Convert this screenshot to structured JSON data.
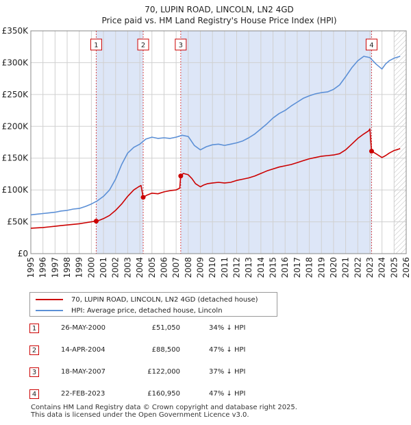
{
  "chart_data": {
    "type": "line",
    "title": "70, LUPIN ROAD, LINCOLN, LN2 4GD",
    "subtitle": "Price paid vs. HM Land Registry's House Price Index (HPI)",
    "y_tick_labels": [
      "£0",
      "£50K",
      "£100K",
      "£150K",
      "£200K",
      "£250K",
      "£300K",
      "£350K"
    ],
    "x_tick_labels": [
      "1995",
      "1996",
      "1997",
      "1998",
      "1999",
      "2000",
      "2001",
      "2002",
      "2003",
      "2004",
      "2005",
      "2006",
      "2007",
      "2008",
      "2009",
      "2010",
      "2011",
      "2012",
      "2013",
      "2014",
      "2015",
      "2016",
      "2017",
      "2018",
      "2019",
      "2020",
      "2021",
      "2022",
      "2023",
      "2024",
      "2025",
      "2026"
    ],
    "xlim": [
      1995,
      2026
    ],
    "ylim": [
      0,
      350000
    ],
    "y_ticks": [
      0,
      50000,
      100000,
      150000,
      200000,
      250000,
      300000,
      350000
    ],
    "hatch_from": 2025.0,
    "colors": {
      "property": "#cc0000",
      "hpi": "#5b8fd6",
      "shade": "#dde6f7",
      "grid": "#d0d0d0"
    },
    "series": [
      {
        "name": "70, LUPIN ROAD, LINCOLN, LN2 4GD (detached house)",
        "color": "#cc0000",
        "x": [
          1995.0,
          1995.5,
          1996.0,
          1996.5,
          1997.0,
          1997.5,
          1998.0,
          1998.5,
          1999.0,
          1999.5,
          2000.0,
          2000.38,
          2000.6,
          2001.0,
          2001.5,
          2002.0,
          2002.5,
          2003.0,
          2003.5,
          2003.9,
          2004.1,
          2004.28,
          2004.6,
          2005.0,
          2005.5,
          2006.0,
          2006.5,
          2007.0,
          2007.3,
          2007.38,
          2007.6,
          2008.0,
          2008.3,
          2008.6,
          2009.0,
          2009.3,
          2009.6,
          2010.0,
          2010.5,
          2011.0,
          2011.5,
          2012.0,
          2012.5,
          2013.0,
          2013.5,
          2014.0,
          2014.5,
          2015.0,
          2015.5,
          2016.0,
          2016.5,
          2017.0,
          2017.5,
          2018.0,
          2018.5,
          2019.0,
          2019.5,
          2020.0,
          2020.5,
          2021.0,
          2021.5,
          2022.0,
          2022.5,
          2022.9,
          2023.0,
          2023.14,
          2023.5,
          2024.0,
          2024.3,
          2024.6,
          2025.0,
          2025.5
        ],
        "values": [
          40000,
          40500,
          41000,
          42000,
          43000,
          44000,
          45000,
          46000,
          47000,
          48500,
          50000,
          51050,
          52000,
          55000,
          60000,
          68000,
          78000,
          90000,
          100000,
          105000,
          107000,
          88500,
          92000,
          95000,
          94000,
          97000,
          99000,
          100000,
          103000,
          122000,
          126000,
          124000,
          118000,
          110000,
          105000,
          108000,
          110000,
          111000,
          112000,
          111000,
          112000,
          115000,
          117000,
          119000,
          122000,
          126000,
          130000,
          133000,
          136000,
          138000,
          140000,
          143000,
          146000,
          149000,
          151000,
          153000,
          154000,
          155000,
          157000,
          163000,
          172000,
          181000,
          188000,
          193000,
          196000,
          160950,
          157000,
          151000,
          154000,
          158000,
          162000,
          165000
        ]
      },
      {
        "name": "HPI: Average price, detached house, Lincoln",
        "color": "#5b8fd6",
        "x": [
          1995.0,
          1995.5,
          1996.0,
          1996.5,
          1997.0,
          1997.5,
          1998.0,
          1998.5,
          1999.0,
          1999.5,
          2000.0,
          2000.5,
          2001.0,
          2001.5,
          2002.0,
          2002.5,
          2003.0,
          2003.5,
          2004.0,
          2004.5,
          2005.0,
          2005.5,
          2006.0,
          2006.5,
          2007.0,
          2007.5,
          2008.0,
          2008.5,
          2009.0,
          2009.5,
          2010.0,
          2010.5,
          2011.0,
          2011.5,
          2012.0,
          2012.5,
          2013.0,
          2013.5,
          2014.0,
          2014.5,
          2015.0,
          2015.5,
          2016.0,
          2016.5,
          2017.0,
          2017.5,
          2018.0,
          2018.5,
          2019.0,
          2019.5,
          2020.0,
          2020.5,
          2021.0,
          2021.5,
          2022.0,
          2022.5,
          2023.0,
          2023.5,
          2024.0,
          2024.3,
          2024.6,
          2025.0,
          2025.5
        ],
        "values": [
          61000,
          62000,
          63000,
          64000,
          65000,
          67000,
          68000,
          70000,
          71000,
          74000,
          78000,
          83000,
          90000,
          100000,
          117000,
          140000,
          158000,
          167000,
          172000,
          180000,
          183000,
          181000,
          182000,
          181000,
          183000,
          186000,
          184000,
          170000,
          163000,
          168000,
          171000,
          172000,
          170000,
          172000,
          174000,
          177000,
          182000,
          188000,
          196000,
          204000,
          213000,
          220000,
          225000,
          232000,
          238000,
          244000,
          248000,
          251000,
          253000,
          254000,
          258000,
          265000,
          278000,
          292000,
          303000,
          310000,
          308000,
          298000,
          290000,
          298000,
          303000,
          307000,
          310000
        ]
      }
    ],
    "sales": [
      {
        "n": "1",
        "x": 2000.4,
        "value": 51050
      },
      {
        "n": "2",
        "x": 2004.28,
        "value": 88500
      },
      {
        "n": "3",
        "x": 2007.38,
        "value": 122000
      },
      {
        "n": "4",
        "x": 2023.14,
        "value": 160950
      }
    ],
    "shaded_ranges": [
      [
        2000.4,
        2004.28
      ],
      [
        2007.38,
        2023.14
      ]
    ]
  },
  "legend": {
    "property": "70, LUPIN ROAD, LINCOLN, LN2 4GD (detached house)",
    "hpi": "HPI: Average price, detached house, Lincoln"
  },
  "sales_table": [
    {
      "n": "1",
      "date": "26-MAY-2000",
      "price": "£51,050",
      "hpi": "34% ↓ HPI"
    },
    {
      "n": "2",
      "date": "14-APR-2004",
      "price": "£88,500",
      "hpi": "47% ↓ HPI"
    },
    {
      "n": "3",
      "date": "18-MAY-2007",
      "price": "£122,000",
      "hpi": "37% ↓ HPI"
    },
    {
      "n": "4",
      "date": "22-FEB-2023",
      "price": "£160,950",
      "hpi": "47% ↓ HPI"
    }
  ],
  "footer": {
    "line1": "Contains HM Land Registry data © Crown copyright and database right 2025.",
    "line2": "This data is licensed under the Open Government Licence v3.0."
  }
}
